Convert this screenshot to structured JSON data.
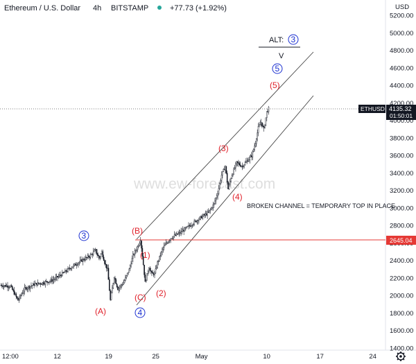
{
  "header": {
    "symbol_title": "Ethereum / U.S. Dollar",
    "interval": "4h",
    "exchange": "BITSTAMP",
    "change": "+77.73 (+1.92%)",
    "change_color": "#26a69a"
  },
  "currency": "USD",
  "watermark": "www.ew-forecast.com",
  "price_tag": {
    "symbol": "ETHUSD",
    "price": "4135.32",
    "countdown": "01:50:01"
  },
  "level_tag": "2645.04",
  "settings_icon": "gear-icon",
  "chart_data": {
    "type": "candlestick",
    "ylim": [
      1400,
      5200
    ],
    "y_ticks": [
      "1400.00",
      "1600.00",
      "1800.00",
      "2000.00",
      "2200.00",
      "2400.00",
      "2600.00",
      "2800.00",
      "3000.00",
      "3200.00",
      "3400.00",
      "3600.00",
      "3800.00",
      "4000.00",
      "4200.00",
      "4400.00",
      "4600.00",
      "4800.00",
      "5000.00",
      "5200.00"
    ],
    "x_ticks": [
      "12:00",
      "12",
      "19",
      "25",
      "May",
      "10",
      "17",
      "24"
    ],
    "last_price": 4135.32,
    "horizontal_level": 2645.04,
    "path_knots": [
      [
        0,
        2120
      ],
      [
        10,
        2110
      ],
      [
        18,
        1950
      ],
      [
        25,
        2080
      ],
      [
        35,
        2130
      ],
      [
        45,
        2150
      ],
      [
        55,
        2180
      ],
      [
        65,
        2250
      ],
      [
        75,
        2330
      ],
      [
        85,
        2400
      ],
      [
        95,
        2460
      ],
      [
        100,
        2520
      ],
      [
        104,
        2430
      ],
      [
        107,
        2500
      ],
      [
        110,
        2380
      ],
      [
        113,
        2300
      ],
      [
        116,
        1950
      ],
      [
        120,
        2220
      ],
      [
        124,
        2080
      ],
      [
        130,
        2150
      ],
      [
        136,
        2300
      ],
      [
        140,
        2460
      ],
      [
        145,
        2560
      ],
      [
        148,
        2645
      ],
      [
        150,
        2460
      ],
      [
        153,
        2150
      ],
      [
        157,
        2330
      ],
      [
        160,
        2250
      ],
      [
        163,
        2250
      ],
      [
        166,
        2380
      ],
      [
        172,
        2550
      ],
      [
        180,
        2660
      ],
      [
        190,
        2720
      ],
      [
        200,
        2800
      ],
      [
        210,
        2880
      ],
      [
        220,
        2950
      ],
      [
        226,
        3050
      ],
      [
        230,
        3180
      ],
      [
        234,
        3380
      ],
      [
        238,
        3480
      ],
      [
        241,
        3220
      ],
      [
        244,
        3350
      ],
      [
        250,
        3520
      ],
      [
        256,
        3480
      ],
      [
        262,
        3550
      ],
      [
        266,
        3600
      ],
      [
        270,
        3750
      ],
      [
        273,
        3920
      ],
      [
        276,
        3980
      ],
      [
        279,
        3900
      ],
      [
        282,
        4100
      ],
      [
        284,
        4135
      ]
    ],
    "wave_labels": [
      {
        "text": "3",
        "style": "circle-blue"
      },
      {
        "text": "(A)",
        "style": "red"
      },
      {
        "text": "(B)",
        "style": "red"
      },
      {
        "text": "(1)",
        "style": "red"
      },
      {
        "text": "(C)",
        "style": "red"
      },
      {
        "text": "4",
        "style": "circle-blue"
      },
      {
        "text": "(2)",
        "style": "red"
      },
      {
        "text": "(3)",
        "style": "red"
      },
      {
        "text": "(4)",
        "style": "red"
      },
      {
        "text": "(5)",
        "style": "red"
      },
      {
        "text": "5",
        "style": "circle-blue"
      }
    ],
    "alt_label": {
      "prefix": "ALT:",
      "circled": "3",
      "below": "V"
    },
    "annotation": "BROKEN CHANNEL = TEMPORARY TOP IN PLACE"
  }
}
